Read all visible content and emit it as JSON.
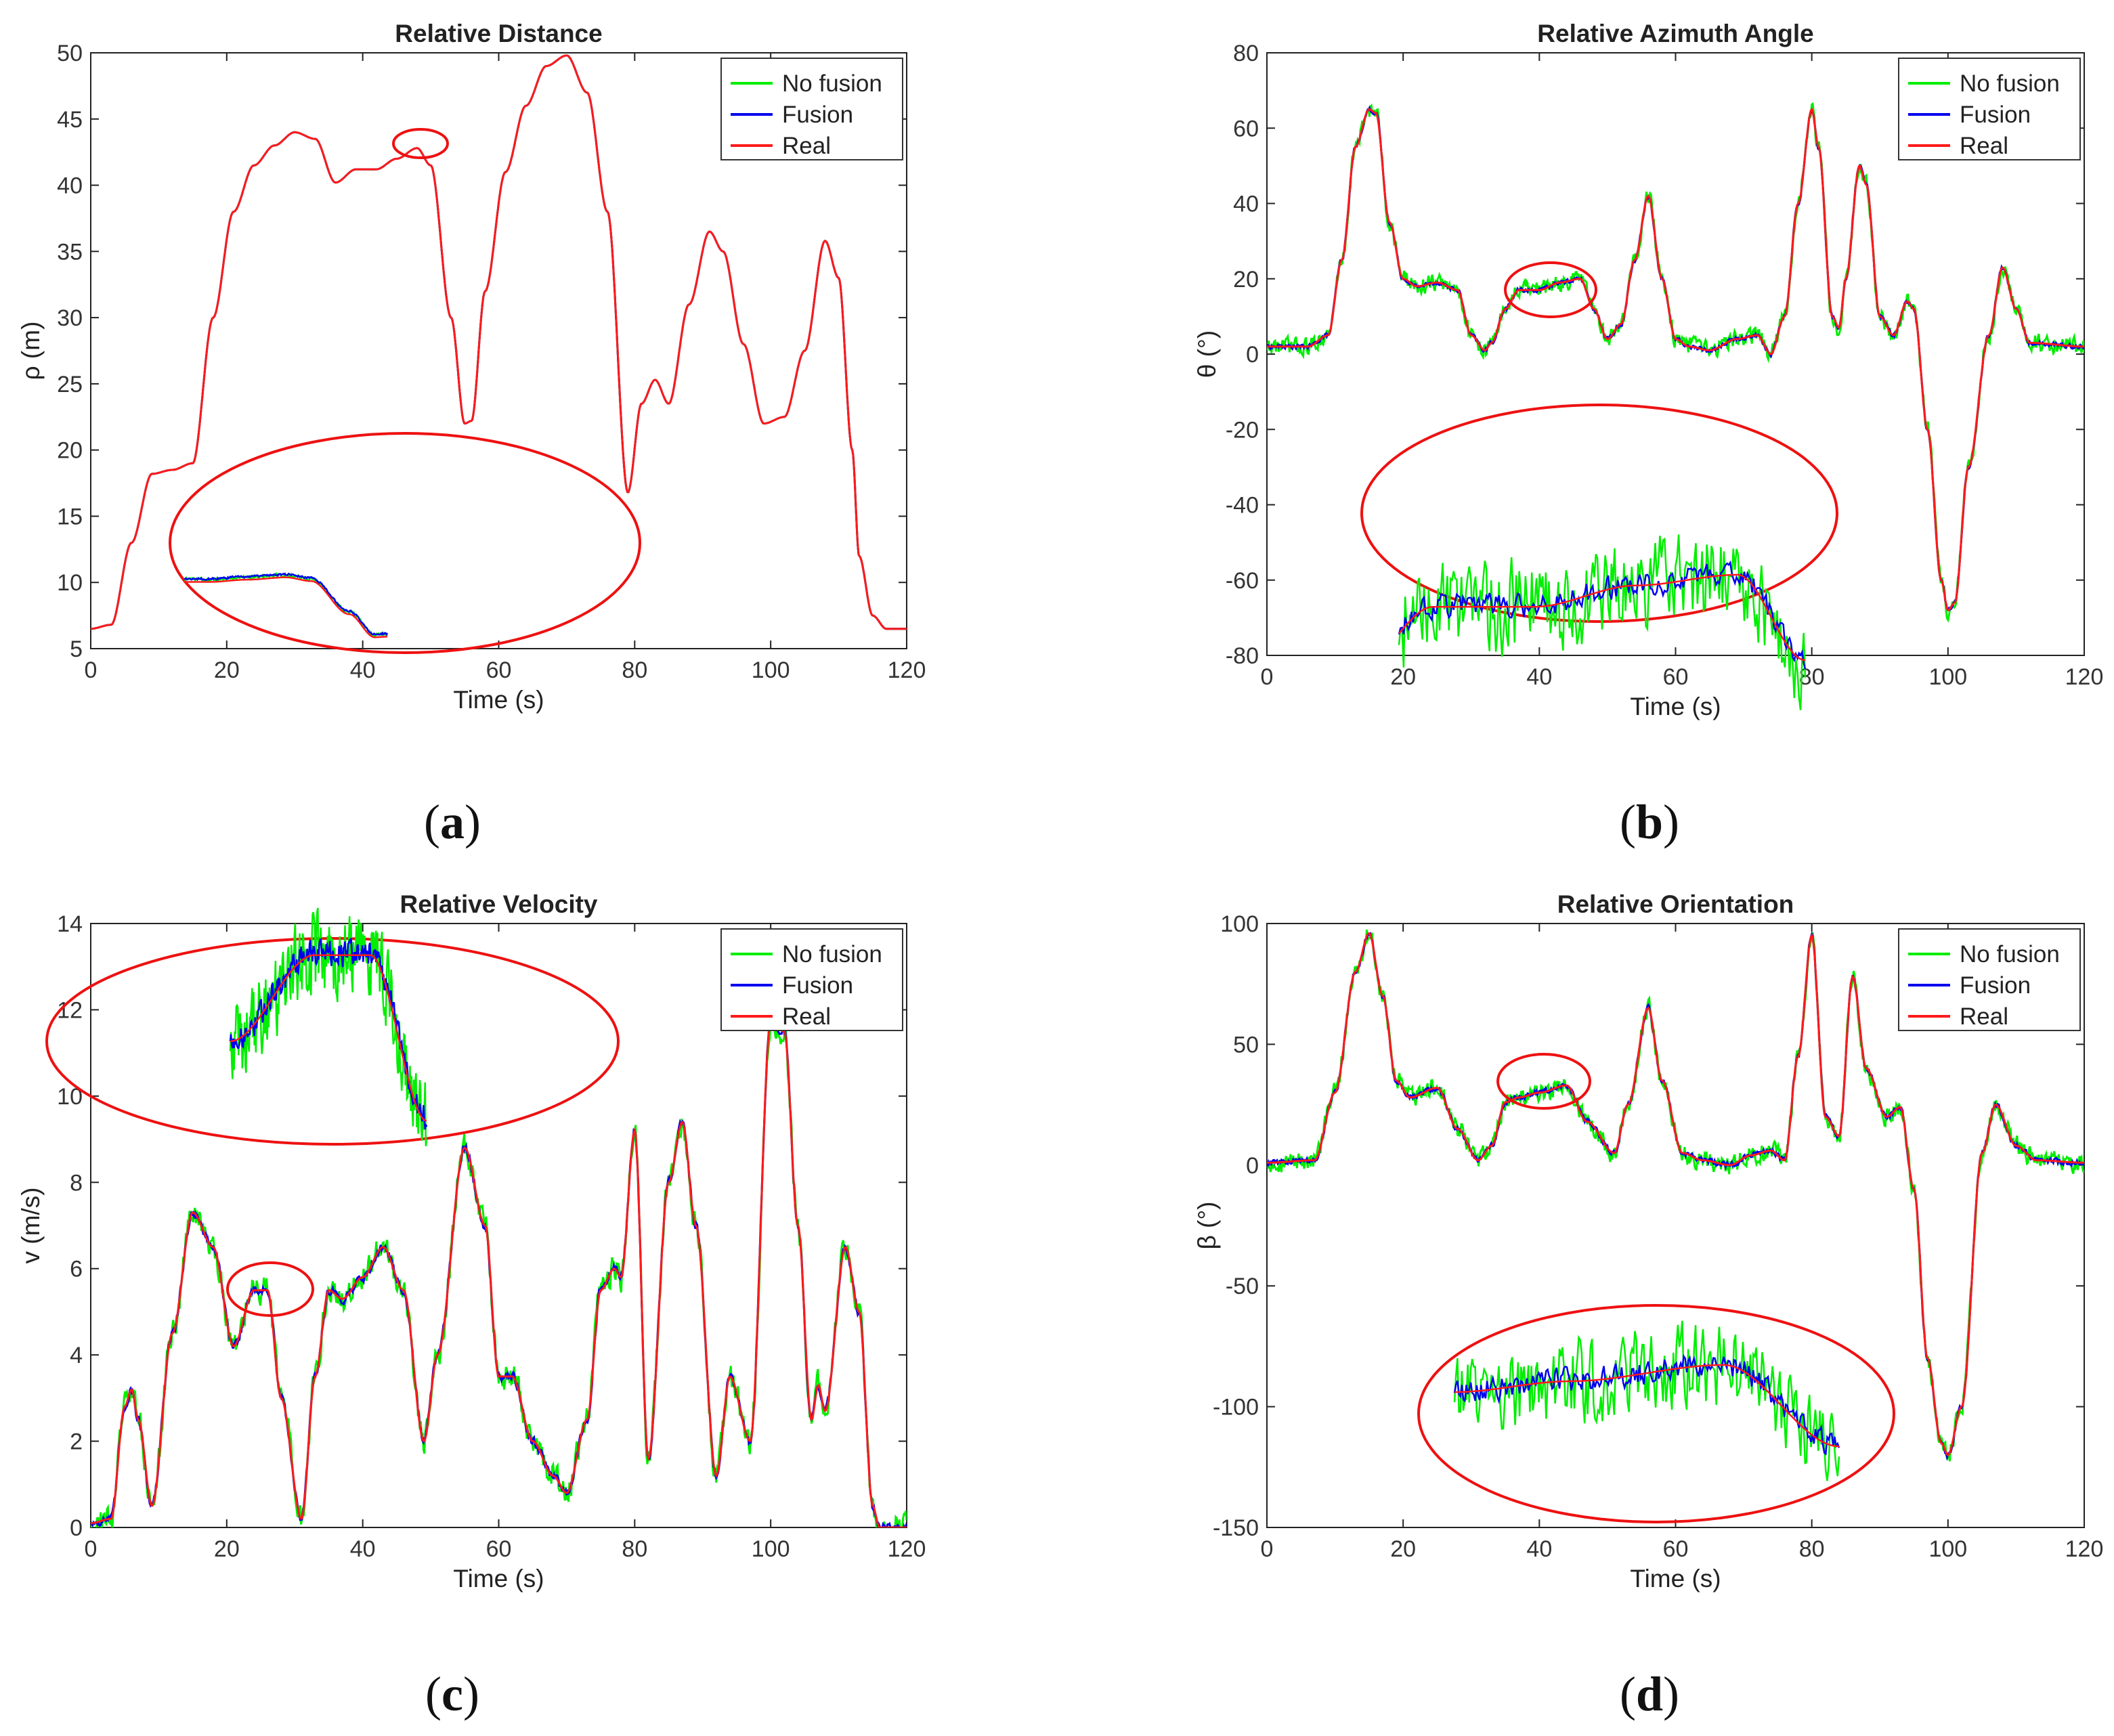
{
  "colors": {
    "no_fusion": "#00ee00",
    "fusion": "#0000ee",
    "real": "#ff1a1a",
    "highlight": "#ee1111"
  },
  "chart_data": [
    {
      "id": "a",
      "type": "line",
      "title": "Relative Distance",
      "xlabel": "Time (s)",
      "ylabel": "ρ (m)",
      "caption": "a",
      "xlim": [
        0,
        120
      ],
      "ylim": [
        5,
        50
      ],
      "xticks": [
        "0",
        "20",
        "40",
        "60",
        "80",
        "100",
        "120"
      ],
      "yticks": [
        "5",
        "10",
        "15",
        "20",
        "25",
        "30",
        "35",
        "40",
        "45",
        "50"
      ],
      "legend": {
        "position": "top-right",
        "entries": [
          "No fusion",
          "Fusion",
          "Real"
        ]
      },
      "noise": {
        "no_fusion": 0.0,
        "fusion": 0.0
      },
      "x": [
        0,
        3,
        6,
        9,
        12,
        15,
        18,
        21,
        24,
        27,
        30,
        33,
        36,
        39,
        42,
        45,
        48,
        50,
        53,
        55,
        56,
        58,
        61,
        64,
        67,
        70,
        73,
        76,
        79,
        81,
        83,
        85,
        88,
        91,
        93,
        96,
        99,
        102,
        105,
        108,
        110,
        112,
        113,
        115,
        117,
        120
      ],
      "real": [
        6.5,
        6.8,
        13,
        18.2,
        18.5,
        19,
        30,
        38,
        41.5,
        43,
        44,
        43.5,
        40.2,
        41.2,
        41.2,
        42,
        42.8,
        41.5,
        30,
        22,
        22.2,
        32,
        41,
        46,
        49,
        49.8,
        47,
        38,
        16.8,
        23.5,
        25.3,
        23.5,
        31,
        36.5,
        35,
        28,
        22,
        22.5,
        27.5,
        35.8,
        33,
        20,
        12,
        7.5,
        6.5,
        6.5
      ]
    },
    {
      "id": "b",
      "type": "line",
      "title": "Relative Azimuth Angle",
      "xlabel": "Time (s)",
      "ylabel": "θ (°)",
      "caption": "b",
      "xlim": [
        0,
        120
      ],
      "ylim": [
        -80,
        80
      ],
      "xticks": [
        "0",
        "20",
        "40",
        "60",
        "80",
        "100",
        "120"
      ],
      "yticks": [
        "-80",
        "-60",
        "-40",
        "-20",
        "0",
        "20",
        "40",
        "60",
        "80"
      ],
      "legend": {
        "position": "top-right",
        "entries": [
          "No fusion",
          "Fusion",
          "Real"
        ]
      },
      "noise": {
        "no_fusion": 2.0,
        "fusion": 0.5
      },
      "x": [
        0,
        6,
        9,
        11,
        13,
        15,
        16,
        18,
        20,
        22,
        25,
        28,
        30,
        32,
        33,
        35,
        37,
        40,
        43,
        46,
        48,
        50,
        52,
        54,
        56,
        58,
        60,
        62,
        65,
        69,
        72,
        74,
        76,
        78,
        80,
        81,
        83,
        84,
        85,
        87,
        88,
        90,
        92,
        94,
        95,
        97,
        99,
        100,
        101,
        103,
        106,
        108,
        110,
        112,
        120
      ],
      "real": [
        2,
        2,
        5,
        25,
        55,
        65,
        64,
        35,
        20,
        18,
        19,
        17,
        5,
        1,
        3,
        12,
        17,
        17,
        19,
        20,
        12,
        4,
        8,
        25,
        42,
        20,
        4,
        2,
        1,
        4,
        5,
        0,
        10,
        40,
        65,
        55,
        10,
        7,
        20,
        50,
        45,
        10,
        5,
        14,
        12,
        -20,
        -60,
        -68,
        -66,
        -30,
        5,
        23,
        12,
        3,
        2
      ]
    },
    {
      "id": "c",
      "type": "line",
      "title": "Relative Velocity",
      "xlabel": "Time (s)",
      "ylabel": "v (m/s)",
      "caption": "c",
      "xlim": [
        0,
        120
      ],
      "ylim": [
        0,
        14
      ],
      "xticks": [
        "0",
        "20",
        "40",
        "60",
        "80",
        "100",
        "120"
      ],
      "yticks": [
        "0",
        "2",
        "4",
        "6",
        "8",
        "10",
        "12",
        "14"
      ],
      "legend": {
        "position": "top-right",
        "entries": [
          "No fusion",
          "Fusion",
          "Real"
        ]
      },
      "noise": {
        "no_fusion": 0.28,
        "fusion": 0.09
      },
      "x": [
        0,
        3,
        5,
        6,
        7,
        9,
        12,
        15,
        18,
        21,
        24,
        26,
        28,
        31,
        33,
        35,
        37,
        40,
        43,
        46,
        49,
        51,
        55,
        58,
        60,
        62,
        65,
        68,
        70,
        73,
        75,
        77,
        78,
        80,
        82,
        85,
        87,
        89,
        92,
        94,
        97,
        100,
        102,
        104,
        106,
        107,
        108,
        111,
        113,
        115,
        116,
        120
      ],
      "real": [
        0.1,
        0.2,
        2.8,
        3.2,
        2.5,
        0.5,
        4.5,
        7.3,
        6.5,
        4.2,
        5.5,
        5.5,
        3,
        0.2,
        3.5,
        5.5,
        5.3,
        5.8,
        6.5,
        5.5,
        2,
        4,
        8.8,
        7,
        3.5,
        3.5,
        2,
        1.2,
        0.8,
        2.5,
        5.5,
        6,
        5.8,
        9.2,
        1.6,
        8,
        9.4,
        7,
        1.2,
        3.5,
        2,
        11.7,
        11.5,
        7,
        2.5,
        3.3,
        2.7,
        6.5,
        5,
        0.5,
        0,
        0
      ]
    },
    {
      "id": "d",
      "type": "line",
      "title": "Relative Orientation",
      "xlabel": "Time (s)",
      "ylabel": "β (°)",
      "caption": "d",
      "xlim": [
        0,
        120
      ],
      "ylim": [
        -150,
        100
      ],
      "xticks": [
        "0",
        "20",
        "40",
        "60",
        "80",
        "100",
        "120"
      ],
      "yticks": [
        "-150",
        "-100",
        "-50",
        "0",
        "50",
        "100"
      ],
      "legend": {
        "position": "top-right",
        "entries": [
          "No fusion",
          "Fusion",
          "Real"
        ]
      },
      "noise": {
        "no_fusion": 3.5,
        "fusion": 1.0
      },
      "x": [
        0,
        7,
        10,
        13,
        15,
        17,
        19,
        21,
        25,
        28,
        31,
        33,
        35,
        37,
        40,
        44,
        47,
        51,
        53,
        56,
        58,
        61,
        64,
        68,
        71,
        74,
        76,
        78,
        80,
        82,
        84,
        86,
        88,
        91,
        93,
        95,
        97,
        99,
        100,
        102,
        105,
        107,
        110,
        113,
        120
      ],
      "real": [
        1,
        2,
        30,
        80,
        96,
        70,
        35,
        28,
        32,
        15,
        2,
        8,
        26,
        28,
        30,
        33,
        18,
        5,
        25,
        65,
        35,
        5,
        2,
        0,
        4,
        6,
        2,
        45,
        95,
        20,
        12,
        78,
        40,
        20,
        24,
        -10,
        -80,
        -115,
        -120,
        -100,
        5,
        25,
        8,
        2,
        1
      ]
    }
  ]
}
